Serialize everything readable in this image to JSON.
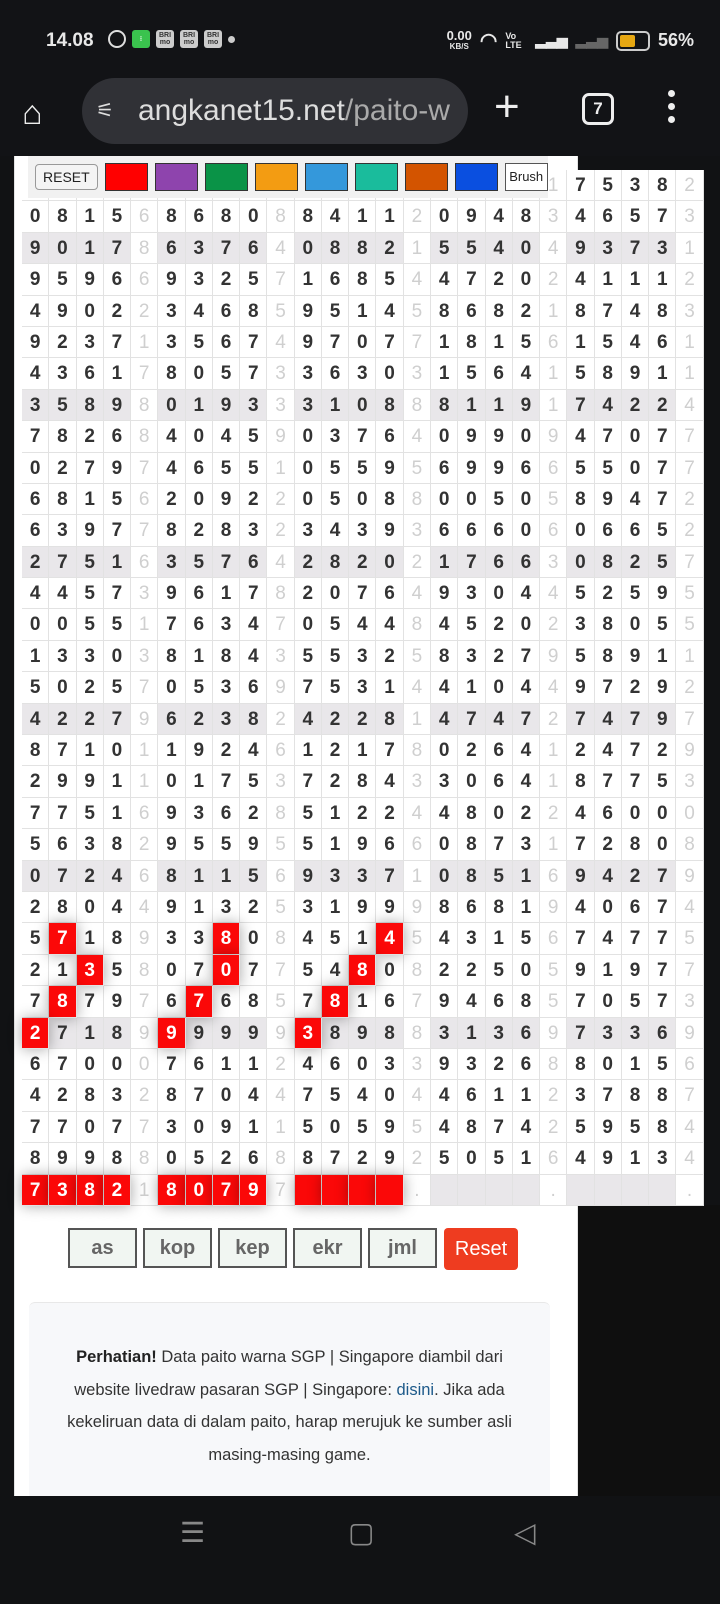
{
  "status_bar": {
    "time": "14.08",
    "notif_icons": [
      "whatsapp-icon",
      "green-app-icon",
      "brimo-icon",
      "brimo-icon",
      "brimo-icon",
      "dot-icon"
    ],
    "brimo_label": "BRI mo",
    "net_speed": "0.00",
    "net_unit": "KB/S",
    "volte": "Vo LTE",
    "battery": "56%",
    "battery_level": 0.56
  },
  "browser": {
    "url_host": "angkanet15.net",
    "url_path": "/paito-w",
    "tab_count": "7"
  },
  "toolbar": {
    "reset_label": "RESET",
    "brush_label": "Brush",
    "colors": [
      "#ff0000",
      "#8e44ad",
      "#0a9347",
      "#f39c12",
      "#3498db",
      "#1abc9c",
      "#d35400",
      "#0a4fe0"
    ]
  },
  "grid": {
    "rows": [
      {
        "d": "____ _ ____ _ ____ _ ____ 1 7538 2",
        "shaded": false
      },
      {
        "d": "0815 6 8680 8 8411 2 0948 3 4657 3",
        "shaded": false
      },
      {
        "d": "9017 8 6376 4 0882 1 5540 4 9373 1",
        "shaded": true
      },
      {
        "d": "9596 6 9325 7 1685 4 4720 2 4111 2",
        "shaded": false
      },
      {
        "d": "4902 2 3468 5 9514 5 8682 1 8748 3",
        "shaded": false
      },
      {
        "d": "9237 1 3567 4 9707 7 1815 6 1546 1",
        "shaded": false
      },
      {
        "d": "4361 7 8057 3 3630 3 1564 1 5891 1",
        "shaded": false
      },
      {
        "d": "3589 8 0193 3 3108 8 8119 1 7422 4",
        "shaded": true
      },
      {
        "d": "7826 8 4045 9 0376 4 0990 9 4707 7",
        "shaded": false
      },
      {
        "d": "0279 7 4655 1 0559 5 6996 6 5507 7",
        "shaded": false
      },
      {
        "d": "6815 6 2092 2 0508 8 0050 5 8947 2",
        "shaded": false
      },
      {
        "d": "6397 7 8283 2 3439 3 6660 6 0665 2",
        "shaded": false
      },
      {
        "d": "2751 6 3576 4 2820 2 1766 3 0825 7",
        "shaded": true
      },
      {
        "d": "4457 3 9617 8 2076 4 9304 4 5259 5",
        "shaded": false
      },
      {
        "d": "0055 1 7634 7 0544 8 4520 2 3805 5",
        "shaded": false
      },
      {
        "d": "1330 3 8184 3 5532 5 8327 9 5891 1",
        "shaded": false
      },
      {
        "d": "5025 7 0536 9 7531 4 4104 4 9729 2",
        "shaded": false
      },
      {
        "d": "4227 9 6238 2 4228 1 4747 2 7479 7",
        "shaded": true
      },
      {
        "d": "8710 1 1924 6 1217 8 0264 1 2472 9",
        "shaded": false
      },
      {
        "d": "2991 1 0175 3 7284 3 3064 1 8775 3",
        "shaded": false
      },
      {
        "d": "7751 6 9362 8 5122 4 4802 2 4600 0",
        "shaded": false
      },
      {
        "d": "5638 2 9559 5 5196 6 0873 1 7280 8",
        "shaded": false
      },
      {
        "d": "0724 6 8115 6 9337 1 0851 6 9427 9",
        "shaded": true
      },
      {
        "d": "2804 4 9132 5 3199 9 8681 9 4067 4",
        "shaded": false
      },
      {
        "d": "5718 9 3380 8 4514 5 4315 6 7477 5",
        "shaded": false
      },
      {
        "d": "2135 8 0707 7 5480 8 2250 5 9197 7",
        "shaded": false
      },
      {
        "d": "7879 7 6768 5 7816 7 9468 5 7057 3",
        "shaded": false
      },
      {
        "d": "2718 9 9999 9 3898 8 3136 9 7336 9",
        "shaded": true
      },
      {
        "d": "6700 0 7611 2 4603 3 9326 8 8015 6",
        "shaded": false
      },
      {
        "d": "4283 2 8704 4 7540 4 4611 2 3788 7",
        "shaded": false
      },
      {
        "d": "7707 7 3091 1 5059 5 4874 2 5958 4",
        "shaded": false
      },
      {
        "d": "8998 8 0526 8 8729 2 5051 6 4913 4",
        "shaded": false
      },
      {
        "d": "7382 1 8079 7 ____ . ____ . ____ .",
        "shaded": true
      }
    ],
    "highlight_color": "#fb0808",
    "highlights": [
      [
        24,
        1
      ],
      [
        24,
        7
      ],
      [
        24,
        13
      ],
      [
        25,
        2
      ],
      [
        25,
        7
      ],
      [
        25,
        12
      ],
      [
        26,
        1
      ],
      [
        26,
        6
      ],
      [
        26,
        11
      ],
      [
        27,
        0
      ],
      [
        27,
        5
      ],
      [
        27,
        10
      ],
      [
        32,
        0
      ],
      [
        32,
        1
      ],
      [
        32,
        2
      ],
      [
        32,
        3
      ],
      [
        32,
        5
      ],
      [
        32,
        6
      ],
      [
        32,
        7
      ],
      [
        32,
        8
      ],
      [
        32,
        10
      ],
      [
        32,
        11
      ],
      [
        32,
        12
      ],
      [
        32,
        13
      ]
    ]
  },
  "filters": {
    "buttons": [
      "as",
      "kop",
      "kep",
      "ekr",
      "jml"
    ],
    "reset_label": "Reset"
  },
  "notice": {
    "bold": "Perhatian!",
    "text1": " Data paito warna SGP | Singapore diambil dari website livedraw pasaran SGP | Singapore: ",
    "link": "disini",
    "text2": ". Jika ada kekeliruan data di dalam paito, harap merujuk ke sumber asli masing-masing game."
  }
}
